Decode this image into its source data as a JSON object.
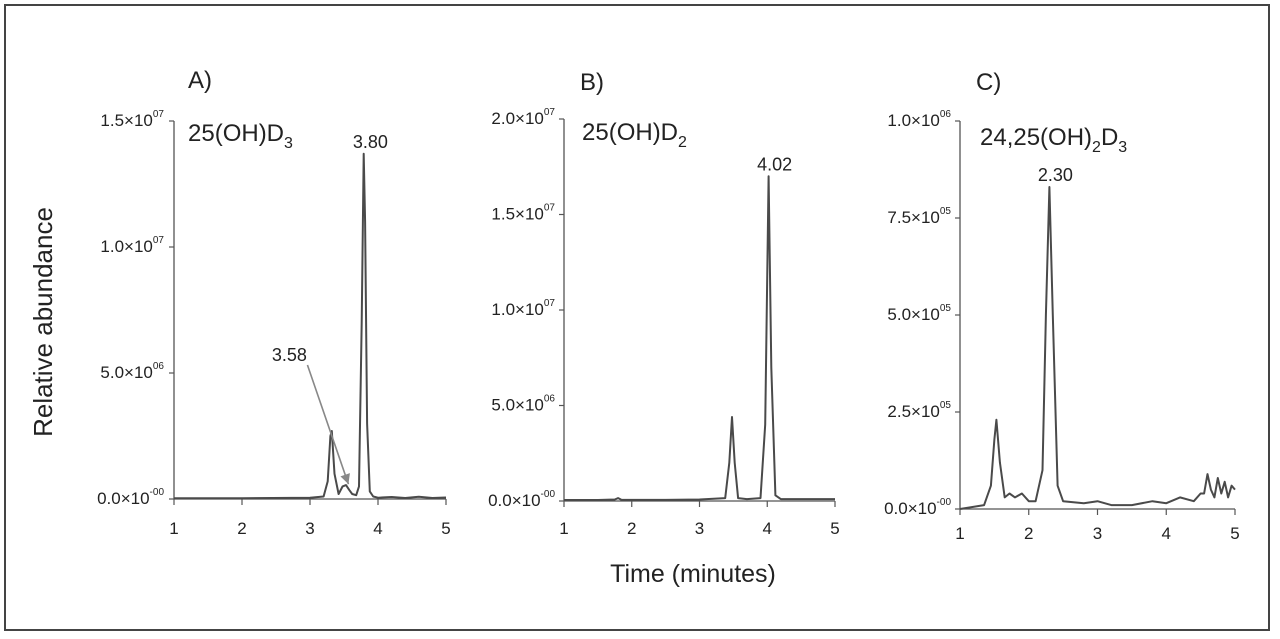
{
  "figure": {
    "ylabel": "Relative abundance",
    "xlabel": "Time (minutes)"
  },
  "colors": {
    "line": "#4a4a4a",
    "axis": "#555555",
    "arrow": "#888888",
    "text": "#222222"
  },
  "chart_data": [
    {
      "type": "line",
      "panel_label": "A)",
      "title": "25(OH)D",
      "title_sub": "3",
      "xlim": [
        1,
        5
      ],
      "xticks": [
        1,
        2,
        3,
        4,
        5
      ],
      "ylim": [
        0,
        15000000
      ],
      "yticks": [
        {
          "value": 0,
          "label": "0.0×10",
          "exp": "-00"
        },
        {
          "value": 5000000,
          "label": "5.0×10",
          "exp": "06"
        },
        {
          "value": 10000000,
          "label": "1.0×10",
          "exp": "07"
        },
        {
          "value": 15000000,
          "label": "1.5×10",
          "exp": "07"
        }
      ],
      "peak_labels": [
        {
          "text": "3.80",
          "x": 3.8,
          "y": 13700000
        },
        {
          "text": "3.58",
          "x": 3.58,
          "y": 350000,
          "arrow": true
        }
      ],
      "series": [
        {
          "x": [
            1.0,
            2.0,
            3.0,
            3.2,
            3.26,
            3.3,
            3.32,
            3.36,
            3.42,
            3.48,
            3.53,
            3.58,
            3.62,
            3.68,
            3.72,
            3.76,
            3.79,
            3.81,
            3.84,
            3.88,
            3.93,
            4.0,
            4.2,
            4.4,
            4.6,
            4.8,
            5.0
          ],
          "y": [
            30000,
            30000,
            50000,
            100000,
            700000,
            2500000,
            2700000,
            1000000,
            200000,
            500000,
            550000,
            350000,
            200000,
            150000,
            500000,
            7000000,
            13700000,
            11000000,
            3000000,
            300000,
            100000,
            50000,
            80000,
            40000,
            90000,
            40000,
            60000
          ]
        }
      ]
    },
    {
      "type": "line",
      "panel_label": "B)",
      "title": "25(OH)D",
      "title_sub": "2",
      "xlim": [
        1,
        5
      ],
      "xticks": [
        1,
        2,
        3,
        4,
        5
      ],
      "ylim": [
        0,
        20000000
      ],
      "yticks": [
        {
          "value": 0,
          "label": "0.0×10",
          "exp": "-00"
        },
        {
          "value": 5000000,
          "label": "5.0×10",
          "exp": "06"
        },
        {
          "value": 10000000,
          "label": "1.0×10",
          "exp": "07"
        },
        {
          "value": 15000000,
          "label": "1.5×10",
          "exp": "07"
        },
        {
          "value": 20000000,
          "label": "2.0×10",
          "exp": "07"
        }
      ],
      "peak_labels": [
        {
          "text": "4.02",
          "x": 4.02,
          "y": 17000000
        }
      ],
      "series": [
        {
          "x": [
            1.0,
            1.5,
            1.75,
            1.8,
            1.85,
            2.5,
            3.0,
            3.38,
            3.44,
            3.48,
            3.52,
            3.57,
            3.7,
            3.9,
            3.97,
            4.02,
            4.06,
            4.12,
            4.2,
            4.5,
            5.0
          ],
          "y": [
            50000,
            50000,
            80000,
            150000,
            60000,
            60000,
            80000,
            150000,
            2000000,
            4400000,
            2000000,
            150000,
            100000,
            150000,
            4000000,
            17000000,
            7000000,
            300000,
            100000,
            100000,
            100000
          ]
        }
      ]
    },
    {
      "type": "line",
      "panel_label": "C)",
      "title": "24,25(OH)",
      "title_sub": "2",
      "title_after": "D",
      "title_sub2": "3",
      "xlim": [
        1,
        5
      ],
      "xticks": [
        1,
        2,
        3,
        4,
        5
      ],
      "ylim": [
        0,
        1000000
      ],
      "yticks": [
        {
          "value": 0,
          "label": "0.0×10",
          "exp": "-00"
        },
        {
          "value": 250000,
          "label": "2.5×10",
          "exp": "05"
        },
        {
          "value": 500000,
          "label": "5.0×10",
          "exp": "05"
        },
        {
          "value": 750000,
          "label": "7.5×10",
          "exp": "05"
        },
        {
          "value": 1000000,
          "label": "1.0×10",
          "exp": "06"
        }
      ],
      "peak_labels": [
        {
          "text": "2.30",
          "x": 2.3,
          "y": 830000
        }
      ],
      "series": [
        {
          "x": [
            1.0,
            1.35,
            1.45,
            1.5,
            1.53,
            1.58,
            1.65,
            1.72,
            1.8,
            1.9,
            2.0,
            2.1,
            2.2,
            2.25,
            2.3,
            2.35,
            2.42,
            2.5,
            2.8,
            3.0,
            3.2,
            3.5,
            3.8,
            4.0,
            4.2,
            4.4,
            4.5,
            4.55,
            4.6,
            4.65,
            4.7,
            4.75,
            4.8,
            4.85,
            4.9,
            4.95,
            5.0
          ],
          "y": [
            0,
            10000,
            60000,
            180000,
            230000,
            120000,
            30000,
            40000,
            30000,
            40000,
            20000,
            20000,
            100000,
            500000,
            830000,
            500000,
            60000,
            20000,
            15000,
            20000,
            10000,
            10000,
            20000,
            15000,
            30000,
            20000,
            40000,
            40000,
            90000,
            50000,
            30000,
            80000,
            40000,
            70000,
            30000,
            60000,
            50000
          ]
        }
      ]
    }
  ]
}
